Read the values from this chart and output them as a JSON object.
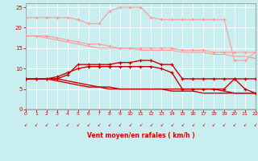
{
  "x": [
    0,
    1,
    2,
    3,
    4,
    5,
    6,
    7,
    8,
    9,
    10,
    11,
    12,
    13,
    14,
    15,
    16,
    17,
    18,
    19,
    20,
    21,
    22
  ],
  "line1_y": [
    22.5,
    22.5,
    22.5,
    22.5,
    22.5,
    22,
    21,
    21,
    24,
    25,
    25,
    25,
    22.5,
    22,
    22,
    22,
    22,
    22,
    22,
    22,
    12,
    12,
    14
  ],
  "line2_y": [
    18,
    18,
    18,
    17.5,
    17,
    16.5,
    16,
    16,
    15.5,
    15,
    15,
    15,
    15,
    15,
    15,
    14.5,
    14.5,
    14.5,
    14,
    14,
    14,
    14,
    14
  ],
  "line3_y": [
    18,
    18,
    17.5,
    17,
    16.5,
    16,
    15.5,
    15,
    15,
    15,
    15,
    14.5,
    14.5,
    14.5,
    14.5,
    14,
    14,
    14,
    13.5,
    13.5,
    13,
    13,
    12.5
  ],
  "line4_y": [
    7.5,
    7.5,
    7.5,
    7.5,
    8.5,
    11,
    11,
    11,
    11,
    11.5,
    11.5,
    12,
    12,
    11,
    11,
    7.5,
    7.5,
    7.5,
    7.5,
    7.5,
    7.5,
    7.5,
    7.5
  ],
  "line5_y": [
    7.5,
    7.5,
    7.5,
    7.5,
    7,
    6.5,
    6,
    5.5,
    5.5,
    5,
    5,
    5,
    5,
    5,
    4.5,
    4.5,
    4.5,
    4,
    4,
    4,
    4,
    4,
    4
  ],
  "line6_y": [
    7.5,
    7.5,
    7.5,
    7,
    6.5,
    6,
    5.5,
    5.5,
    5,
    5,
    5,
    5,
    5,
    5,
    5,
    5,
    5,
    5,
    5,
    4.5,
    4,
    4,
    4
  ],
  "line7_y": [
    7.5,
    7.5,
    7.5,
    8,
    9,
    10,
    10.5,
    10.5,
    10.5,
    10.5,
    10.5,
    10.5,
    10.5,
    10,
    9,
    5,
    5,
    5,
    5,
    5,
    7.5,
    5,
    4
  ],
  "color_light": "#ff9999",
  "color_dark": "#cc0000",
  "bg_color": "#c8eef0",
  "grid_color": "#aadddd",
  "xlabel": "Vent moyen/en rafales ( km/h )",
  "red": "#dd0000",
  "ylim": [
    0,
    26
  ],
  "xlim": [
    0,
    22
  ],
  "yticks": [
    0,
    5,
    10,
    15,
    20,
    25
  ]
}
